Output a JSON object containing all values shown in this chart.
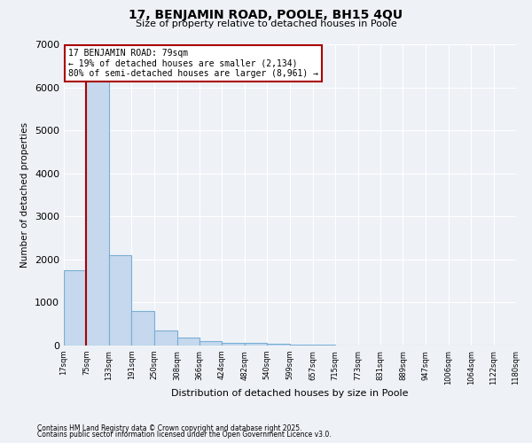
{
  "title_line1": "17, BENJAMIN ROAD, POOLE, BH15 4QU",
  "title_line2": "Size of property relative to detached houses in Poole",
  "xlabel": "Distribution of detached houses by size in Poole",
  "ylabel": "Number of detached properties",
  "bin_edges": [
    17,
    75,
    133,
    191,
    250,
    308,
    366,
    424,
    482,
    540,
    599,
    657,
    715,
    773,
    831,
    889,
    947,
    1006,
    1064,
    1122,
    1180
  ],
  "bar_heights": [
    1750,
    6300,
    2100,
    800,
    350,
    180,
    100,
    65,
    55,
    45,
    25,
    15,
    10,
    8,
    5,
    4,
    2,
    1,
    1,
    1
  ],
  "bar_color": "#c5d8ed",
  "bar_edge_color": "#7baed4",
  "property_line_x": 75,
  "property_line_color": "#aa0000",
  "ylim": [
    0,
    7000
  ],
  "yticks": [
    0,
    1000,
    2000,
    3000,
    4000,
    5000,
    6000,
    7000
  ],
  "annotation_title": "17 BENJAMIN ROAD: 79sqm",
  "annotation_line1": "← 19% of detached houses are smaller (2,134)",
  "annotation_line2": "80% of semi-detached houses are larger (8,961) →",
  "annotation_box_color": "#aa0000",
  "annotation_box_fill": "#ffffff",
  "footnote1": "Contains HM Land Registry data © Crown copyright and database right 2025.",
  "footnote2": "Contains public sector information licensed under the Open Government Licence v3.0.",
  "background_color": "#eef2f7",
  "grid_color": "#ffffff"
}
